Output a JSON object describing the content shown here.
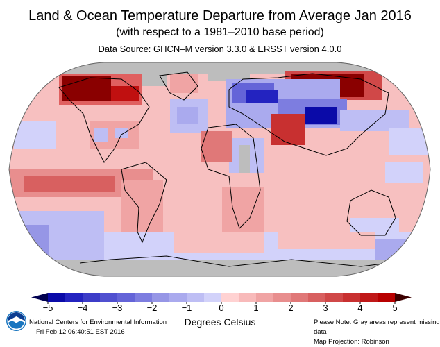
{
  "header": {
    "title": "Land & Ocean Temperature Departure from Average Jan 2016",
    "subtitle": "(with respect to a 1981–2010 base period)",
    "source": "Data Source: GHCN–M version 3.3.0 & ERSST version 4.0.0"
  },
  "map": {
    "missing_color": "#bdbdbd",
    "base_color": "#f7c0c0"
  },
  "colorbar": {
    "ticks": [
      "−5",
      "−4",
      "−3",
      "−2",
      "−1",
      "0",
      "1",
      "2",
      "3",
      "4",
      "5"
    ],
    "range": [
      -5,
      5
    ],
    "step": 0.5,
    "colors": [
      "#0a0aa8",
      "#2323c0",
      "#3c3cc8",
      "#5050d0",
      "#6464d8",
      "#7d7de0",
      "#9696e6",
      "#aaaaee",
      "#bebef4",
      "#d2d2fa",
      "#ffd2d2",
      "#f8baba",
      "#f0a4a4",
      "#e88e8e",
      "#e07878",
      "#d86060",
      "#d04848",
      "#c83030",
      "#c01818",
      "#b80000"
    ],
    "low_extend": "#000050",
    "high_extend": "#3c0000",
    "unit_label": "Degrees Celsius"
  },
  "footer": {
    "org": "National Centers for Environmental Information",
    "timestamp": "Fri Feb 12 06:40:51 EST 2016",
    "note": "Please Note: Gray areas represent missing data",
    "projection": "Map Projection: Robinson",
    "logo_text": "NOAA"
  }
}
